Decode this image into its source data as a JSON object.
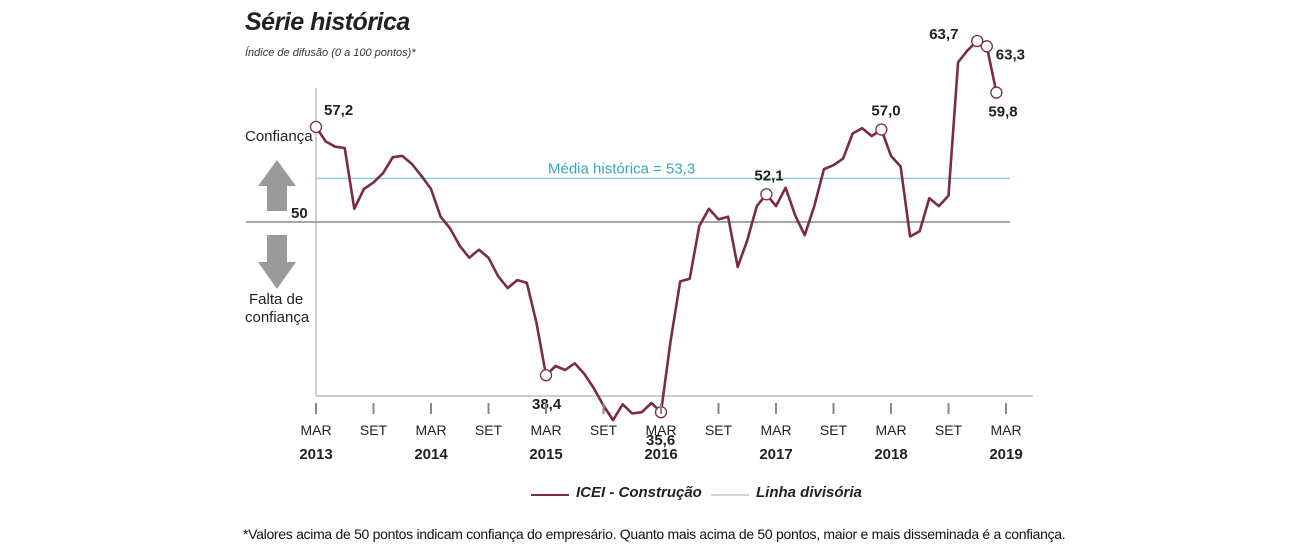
{
  "title": "Série histórica",
  "subtitle": "Índice de difusão (0 a 100 pontos)*",
  "footnote": "*Valores acima de 50 pontos indicam confiança do empresário. Quanto mais acima de 50 pontos, maior e mais disseminada é a confiança.",
  "side_labels": {
    "confidence": "Confiança",
    "no_confidence_line1": "Falta de",
    "no_confidence_line2": "confiança",
    "fifty": "50"
  },
  "colors": {
    "series": "#7b2a4a",
    "mean_line": "#8fd0dc",
    "mean_text": "#3aa6b8",
    "divider": "#888888",
    "arrows": "#9a9a9a"
  },
  "chart_data": {
    "type": "line",
    "title": "Série histórica",
    "ylabel": "Índice de difusão (0 a 100 pontos)*",
    "ylim": [
      32,
      72
    ],
    "x_ticks": [
      {
        "label": "MAR",
        "year": "2013"
      },
      {
        "label": "SET",
        "year": ""
      },
      {
        "label": "MAR",
        "year": "2014"
      },
      {
        "label": "SET",
        "year": ""
      },
      {
        "label": "MAR",
        "year": "2015"
      },
      {
        "label": "SET",
        "year": ""
      },
      {
        "label": "MAR",
        "year": "2016"
      },
      {
        "label": "SET",
        "year": ""
      },
      {
        "label": "MAR",
        "year": "2017"
      },
      {
        "label": "SET",
        "year": ""
      },
      {
        "label": "MAR",
        "year": "2018"
      },
      {
        "label": "SET",
        "year": ""
      },
      {
        "label": "MAR",
        "year": "2019"
      }
    ],
    "reference_lines": [
      {
        "name": "Média histórica = 53,3",
        "value": 53.3
      },
      {
        "name": "Linha divisória",
        "value": 50
      }
    ],
    "series": [
      {
        "name": "ICEI - Construção",
        "values": [
          57.2,
          56.1,
          55.7,
          55.6,
          51.0,
          52.5,
          53.0,
          53.7,
          54.9,
          55.0,
          54.4,
          53.5,
          52.5,
          50.4,
          49.5,
          48.2,
          47.3,
          47.9,
          47.3,
          45.9,
          45.0,
          45.6,
          45.4,
          42.4,
          38.4,
          39.1,
          38.8,
          39.3,
          38.5,
          37.4,
          36.1,
          35.0,
          36.2,
          35.5,
          35.6,
          36.3,
          35.6,
          41.0,
          45.5,
          45.7,
          49.7,
          51.0,
          50.2,
          50.4,
          46.6,
          48.6,
          51.2,
          52.1,
          51.2,
          52.6,
          50.5,
          49.0,
          51.2,
          54.0,
          54.3,
          54.8,
          56.7,
          57.1,
          56.5,
          57.0,
          55.0,
          54.2,
          48.9,
          49.3,
          51.8,
          51.2,
          52.0,
          62.1,
          63.0,
          63.7,
          63.3,
          59.8
        ]
      }
    ],
    "annotations": [
      {
        "index": 0,
        "label": "57,2"
      },
      {
        "index": 24,
        "label": "38,4"
      },
      {
        "index": 36,
        "label": "35,6"
      },
      {
        "index": 47,
        "label": "52,1"
      },
      {
        "index": 59,
        "label": "57,0"
      },
      {
        "index": 69,
        "label": "63,7"
      },
      {
        "index": 70,
        "label": "63,3"
      },
      {
        "index": 71,
        "label": "59,8"
      }
    ],
    "legend": [
      {
        "name": "ICEI - Construção",
        "color": "#7b2a4a"
      },
      {
        "name": "Linha divisória",
        "color": "#c9d6dc"
      }
    ],
    "mean_label": "Média histórica = 53,3"
  }
}
